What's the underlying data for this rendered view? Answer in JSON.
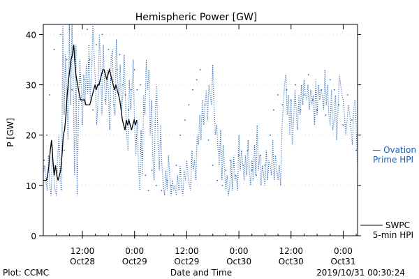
{
  "chart_data": {
    "type": "line",
    "title": "Hemispheric Power [GW]",
    "xlabel": "Date and Time",
    "ylabel": "P [GW]",
    "ylim": [
      0,
      42
    ],
    "yticks": [
      0,
      10,
      20,
      30,
      40
    ],
    "x_unit": "hours since 2019-10-27 00:00",
    "xlim": [
      3.0,
      75.3
    ],
    "xticks": [
      {
        "x": 12,
        "time": "12:00",
        "date": "Oct28"
      },
      {
        "x": 24,
        "time": "0:00",
        "date": "Oct29"
      },
      {
        "x": 36,
        "time": "12:00",
        "date": "Oct29"
      },
      {
        "x": 48,
        "time": "0:00",
        "date": "Oct30"
      },
      {
        "x": 60,
        "time": "12:00",
        "date": "Oct30"
      },
      {
        "x": 72,
        "time": "0:00",
        "date": "Oct31"
      }
    ],
    "grid": "dotted",
    "series": [
      {
        "name": "Ovation Prime HPI",
        "legend_line1": "— Ovation",
        "legend_line2": "Prime HPI",
        "color": "#1a5fb4",
        "style": "dotted",
        "x": [
          3.0,
          3.3,
          3.6,
          3.9,
          4.2,
          4.5,
          4.8,
          5.1,
          5.4,
          5.7,
          6.0,
          6.3,
          6.6,
          6.9,
          7.2,
          7.5,
          7.8,
          8.1,
          8.4,
          8.7,
          9.0,
          9.3,
          9.6,
          9.9,
          10.2,
          10.5,
          10.8,
          11.1,
          11.4,
          11.7,
          12.0,
          12.3,
          12.6,
          12.9,
          13.2,
          13.5,
          13.8,
          14.1,
          14.4,
          14.7,
          15.0,
          15.3,
          15.6,
          15.9,
          16.2,
          16.5,
          16.8,
          17.1,
          17.4,
          17.7,
          18.0,
          18.3,
          18.6,
          18.9,
          19.2,
          19.5,
          19.8,
          20.1,
          20.4,
          20.7,
          21.0,
          21.3,
          21.6,
          21.9,
          22.2,
          22.5,
          22.8,
          23.1,
          23.4,
          23.7,
          24.0,
          24.3,
          24.6,
          24.9,
          25.2,
          25.5,
          25.8,
          26.1,
          26.4,
          26.7,
          27.0,
          27.3,
          27.6,
          27.9,
          28.2,
          28.5,
          28.8,
          29.1,
          29.4,
          29.7,
          30.0,
          30.3,
          30.6,
          30.9,
          31.2,
          31.5,
          31.8,
          32.1,
          32.4,
          32.7,
          33.0,
          33.3,
          33.6,
          33.9,
          34.2,
          34.5,
          34.8,
          35.1,
          35.4,
          35.7,
          36.0,
          36.3,
          36.6,
          36.9,
          37.2,
          37.5,
          37.8,
          38.1,
          38.4,
          38.7,
          39.0,
          39.3,
          39.6,
          39.9,
          40.2,
          40.5,
          40.8,
          41.1,
          41.4,
          41.7,
          42.0,
          42.3,
          42.6,
          42.9,
          43.2,
          43.5,
          43.8,
          44.1,
          44.4,
          44.7,
          45.0,
          45.3,
          45.6,
          45.9,
          46.2,
          46.5,
          46.8,
          47.1,
          47.4,
          47.7,
          48.0,
          48.3,
          48.6,
          48.9,
          49.2,
          49.5,
          49.8,
          50.1,
          50.4,
          50.7,
          51.0,
          51.3,
          51.6,
          51.9,
          52.2,
          52.5,
          52.8,
          53.1,
          53.4,
          53.7,
          54.0,
          54.3,
          54.6,
          54.9,
          55.2,
          55.5,
          55.8,
          56.1,
          56.4,
          56.7,
          57.0,
          57.3,
          57.6,
          57.9,
          58.2,
          58.5,
          58.8,
          59.1,
          59.4,
          59.7,
          60.0,
          60.3,
          60.6,
          60.9,
          61.2,
          61.5,
          61.8,
          62.1,
          62.4,
          62.7,
          63.0,
          63.3,
          63.6,
          63.9,
          64.2,
          64.5,
          64.8,
          65.1,
          65.4,
          65.7,
          66.0,
          66.3,
          66.6,
          66.9,
          67.2,
          67.5,
          67.8,
          68.1,
          68.4,
          68.7,
          69.0,
          69.3,
          69.6,
          69.9,
          70.2,
          70.5,
          70.8,
          71.1,
          71.4,
          71.7,
          72.0,
          72.3,
          72.6,
          72.9,
          73.2,
          73.5,
          73.8,
          74.1,
          74.4,
          74.7,
          75.0,
          75.3
        ],
        "values": [
          12,
          14,
          11,
          9,
          16,
          10,
          8,
          18,
          12,
          9,
          8,
          15,
          20,
          11,
          9,
          42,
          24,
          36,
          28,
          19,
          42,
          26,
          42,
          30,
          12,
          38,
          8,
          24,
          35,
          30,
          22,
          32,
          26,
          34,
          28,
          38,
          27,
          32,
          42,
          36,
          30,
          22,
          27,
          40,
          33,
          24,
          38,
          30,
          26,
          33,
          28,
          21,
          35,
          37,
          26,
          24,
          39,
          31,
          28,
          34,
          25,
          28,
          36,
          27,
          20,
          17,
          31,
          25,
          29,
          35,
          22,
          16,
          23,
          14,
          9,
          21,
          12,
          28,
          24,
          35,
          29,
          33,
          20,
          27,
          16,
          11,
          25,
          30,
          18,
          13,
          22,
          14,
          10,
          8,
          13,
          9,
          16,
          12,
          8,
          11,
          9,
          10,
          8,
          12,
          9,
          14,
          10,
          8,
          13,
          11,
          15,
          12,
          10,
          9,
          17,
          13,
          15,
          11,
          20,
          18,
          24,
          19,
          27,
          22,
          26,
          29,
          23,
          30,
          28,
          26,
          34,
          25,
          20,
          22,
          17,
          14,
          21,
          11,
          18,
          13,
          9,
          12,
          8,
          10,
          15,
          9,
          16,
          11,
          12,
          9,
          20,
          13,
          17,
          14,
          11,
          16,
          12,
          19,
          13,
          10,
          15,
          11,
          18,
          12,
          22,
          13,
          16,
          10,
          14,
          12,
          10,
          17,
          11,
          15,
          14,
          12,
          19,
          11,
          16,
          13,
          11,
          14,
          10,
          21,
          26,
          30,
          32,
          24,
          28,
          20,
          27,
          18,
          23,
          29,
          25,
          21,
          28,
          24,
          30,
          26,
          31,
          28,
          27,
          30,
          25,
          29,
          26,
          28,
          22,
          31,
          24,
          30,
          27,
          29,
          28,
          25,
          33,
          26,
          30,
          24,
          22,
          29,
          21,
          23,
          28,
          19,
          25,
          32,
          30,
          28,
          27,
          24,
          20,
          23,
          26,
          24,
          21,
          18,
          25,
          27,
          22,
          13
        ],
        "dots": [
          [
            3.2,
            15
          ],
          [
            3.8,
            20
          ],
          [
            4.5,
            28
          ],
          [
            5.5,
            37
          ],
          [
            6.3,
            42
          ],
          [
            7.0,
            40
          ],
          [
            7.8,
            17
          ],
          [
            8.4,
            35
          ],
          [
            9.0,
            41
          ],
          [
            9.6,
            29
          ],
          [
            10.3,
            35
          ],
          [
            11.0,
            20
          ],
          [
            11.8,
            27
          ],
          [
            12.4,
            31
          ],
          [
            13.1,
            41
          ],
          [
            13.7,
            35
          ],
          [
            14.4,
            25
          ],
          [
            15.2,
            38
          ],
          [
            15.9,
            30
          ],
          [
            16.6,
            40
          ],
          [
            17.2,
            27
          ],
          [
            18.0,
            37
          ],
          [
            18.6,
            31
          ],
          [
            19.3,
            26
          ],
          [
            20.0,
            33
          ],
          [
            20.6,
            36
          ],
          [
            21.3,
            30
          ],
          [
            21.9,
            28
          ],
          [
            22.6,
            25
          ],
          [
            23.2,
            29
          ],
          [
            24.0,
            33
          ],
          [
            24.6,
            29
          ],
          [
            25.3,
            30
          ],
          [
            26.5,
            12
          ],
          [
            27.2,
            9
          ],
          [
            28.0,
            13
          ],
          [
            29.0,
            10
          ],
          [
            30.2,
            9
          ],
          [
            31.5,
            11
          ],
          [
            32.4,
            10
          ],
          [
            33.6,
            14
          ],
          [
            34.5,
            20
          ],
          [
            35.6,
            23
          ],
          [
            36.5,
            26
          ],
          [
            37.4,
            29
          ],
          [
            38.3,
            31
          ],
          [
            39.1,
            33
          ],
          [
            40.2,
            26
          ],
          [
            41.0,
            19
          ],
          [
            42.0,
            14
          ],
          [
            43.0,
            11
          ],
          [
            44.2,
            10
          ],
          [
            45.0,
            13
          ],
          [
            46.0,
            15
          ],
          [
            47.2,
            12
          ],
          [
            48.0,
            16
          ],
          [
            49.0,
            14
          ],
          [
            50.0,
            17
          ],
          [
            51.0,
            13
          ],
          [
            52.0,
            12
          ],
          [
            53.0,
            16
          ],
          [
            54.0,
            14
          ],
          [
            55.2,
            20
          ],
          [
            56.0,
            25
          ],
          [
            57.0,
            28
          ],
          [
            58.0,
            26
          ],
          [
            59.0,
            29
          ],
          [
            60.0,
            27
          ],
          [
            61.0,
            30
          ],
          [
            62.2,
            25
          ],
          [
            63.0,
            28
          ],
          [
            64.0,
            32
          ],
          [
            65.0,
            27
          ],
          [
            66.0,
            25
          ],
          [
            67.0,
            29
          ],
          [
            68.0,
            24
          ],
          [
            69.0,
            31
          ],
          [
            70.0,
            29
          ],
          [
            71.0,
            26
          ],
          [
            72.0,
            22
          ],
          [
            73.0,
            28
          ],
          [
            74.0,
            23
          ],
          [
            75.0,
            17
          ]
        ]
      },
      {
        "name": "SWPC 5-min HPI",
        "legend_line1": "SWPC",
        "legend_line2": "5-min HPI",
        "color": "#000000",
        "style": "solid",
        "x": [
          3.0,
          3.4,
          3.7,
          4.0,
          4.3,
          4.6,
          4.9,
          5.2,
          5.5,
          5.8,
          6.1,
          6.4,
          6.7,
          7.0,
          7.3,
          7.6,
          7.9,
          8.2,
          8.5,
          8.8,
          9.1,
          9.4,
          9.7,
          10.0,
          10.3,
          10.5,
          10.7,
          10.9,
          11.1,
          11.3,
          11.6,
          11.9,
          12.2,
          12.5,
          12.8,
          13.1,
          13.4,
          13.7,
          14.0,
          14.3,
          14.6,
          14.9,
          15.2,
          15.5,
          15.8,
          16.1,
          16.4,
          16.7,
          17.0,
          17.3,
          17.6,
          17.9,
          18.2,
          18.5,
          18.8,
          19.1,
          19.4,
          19.7,
          20.0,
          20.3,
          20.6,
          20.9,
          21.2,
          21.5,
          21.8,
          22.1,
          22.4,
          22.7,
          23.0,
          23.3,
          23.6,
          23.9,
          24.2,
          24.5
        ],
        "values": [
          11,
          11,
          11,
          12,
          14,
          17,
          19,
          15,
          12,
          14,
          12,
          11,
          12,
          13,
          16,
          20,
          21,
          24,
          28,
          31,
          33,
          35,
          36,
          38,
          34,
          32,
          31,
          30,
          29,
          28,
          27,
          27,
          27,
          27,
          26,
          26,
          26,
          26,
          27,
          28,
          29,
          30,
          29,
          30,
          30,
          31,
          32,
          33,
          33,
          32,
          31,
          32,
          33,
          32,
          31,
          30,
          29,
          30,
          29,
          28,
          27,
          25,
          23,
          22,
          21,
          23,
          22,
          23,
          22,
          21,
          22,
          23,
          22,
          23
        ]
      }
    ]
  },
  "footer": {
    "plot_label": "Plot: CCMC",
    "timestamp": "2019/10/31 00:30:24"
  },
  "colors": {
    "ovation": "#1a5fb4",
    "swpc": "#000000",
    "axis": "#000000"
  }
}
